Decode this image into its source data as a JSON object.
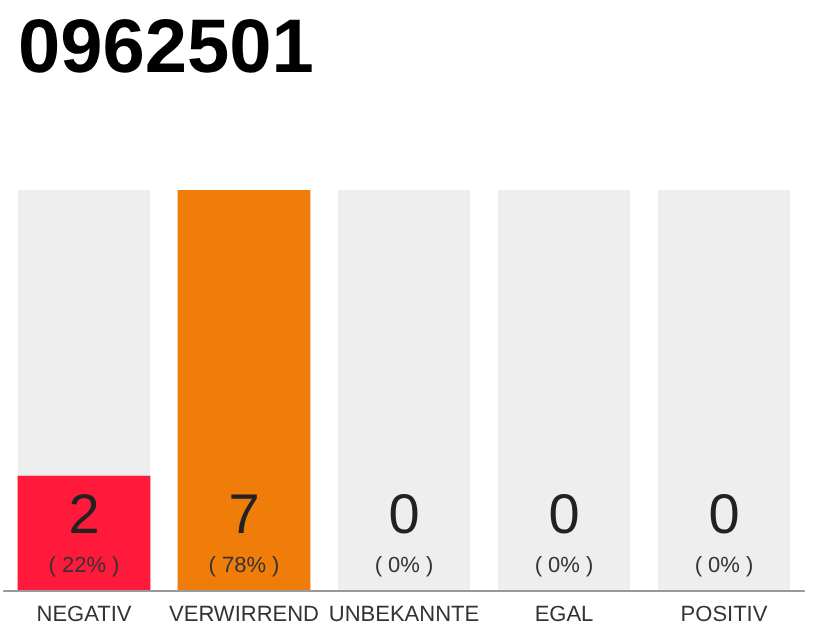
{
  "chart_data": {
    "type": "bar",
    "title": "0962501",
    "categories": [
      "NEGATIV",
      "VERWIRREND",
      "UNBEKANNTE",
      "EGAL",
      "POSITIV"
    ],
    "values": [
      2,
      7,
      0,
      0,
      0
    ],
    "colors": [
      "#ff1a3c",
      "#f07d0a",
      "#eeeeee",
      "#eeeeee",
      "#eeeeee"
    ],
    "data_labels": true,
    "annotations": [
      "( 22% )",
      "( 78% )",
      "( 0% )",
      "( 0% )",
      "( 0% )"
    ]
  }
}
